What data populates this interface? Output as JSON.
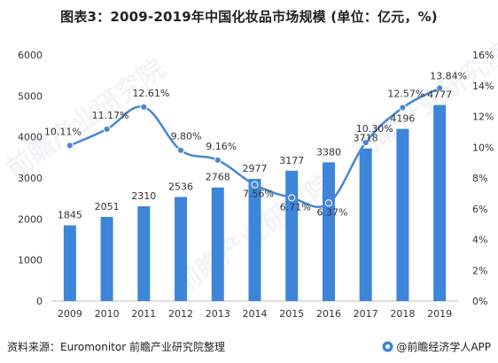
{
  "title": "图表3：2009-2019年中国化妆品市场规模 (单位：亿元，%)",
  "source": "资料来源：Euromonitor 前瞻产业研究院整理",
  "brand": "@前瞻经济学人APP",
  "watermark_text": "前瞻产业研究院",
  "colors": {
    "bar": "#3d85d8",
    "line": "#4a86d4",
    "axis": "#999999",
    "text": "#333333"
  },
  "chart_data": {
    "type": "bar",
    "categories": [
      "2009",
      "2010",
      "2011",
      "2012",
      "2013",
      "2014",
      "2015",
      "2016",
      "2017",
      "2018",
      "2019"
    ],
    "series": [
      {
        "axis": "left",
        "type": "bar",
        "values": [
          1845,
          2051,
          2310,
          2536,
          2768,
          2977,
          3177,
          3380,
          3718,
          4196,
          4777
        ],
        "labels": [
          "1845",
          "2051",
          "2310",
          "2536",
          "2768",
          "2977",
          "3177",
          "3380",
          "3718",
          "4196",
          "4777"
        ]
      },
      {
        "axis": "right",
        "type": "line",
        "values": [
          10.11,
          11.17,
          12.61,
          9.8,
          9.16,
          7.56,
          6.71,
          6.37,
          10.3,
          12.57,
          13.84
        ],
        "labels": [
          "10.11%",
          "11.17%",
          "12.61%",
          "9.80%",
          "9.16%",
          "7.56%",
          "6.71%",
          "6.37%",
          "10.30%",
          "12.57%",
          "13.84%"
        ]
      }
    ],
    "yleft": {
      "lim": [
        0,
        6000
      ],
      "ticks": [
        "0",
        "1000",
        "2000",
        "3000",
        "4000",
        "5000",
        "6000"
      ]
    },
    "yright": {
      "lim": [
        0,
        16
      ],
      "ticks": [
        "0%",
        "2%",
        "4%",
        "6%",
        "8%",
        "10%",
        "12%",
        "14%",
        "16%"
      ]
    },
    "xlabel": "",
    "ylabel": "",
    "grid": false
  }
}
